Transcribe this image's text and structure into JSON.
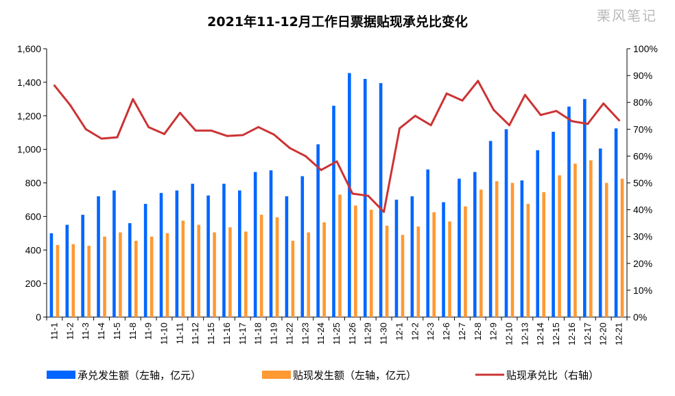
{
  "chart_data": {
    "type": "bar",
    "title": "2021年11-12月工作日票据贴现承兑比变化",
    "watermark": "栗风笔记",
    "categories": [
      "11-1",
      "11-2",
      "11-3",
      "11-4",
      "11-5",
      "11-8",
      "11-9",
      "11-10",
      "11-11",
      "11-12",
      "11-15",
      "11-16",
      "11-17",
      "11-18",
      "11-19",
      "11-22",
      "11-23",
      "11-24",
      "11-25",
      "11-26",
      "11-29",
      "11-30",
      "12-1",
      "12-2",
      "12-3",
      "12-6",
      "12-7",
      "12-8",
      "12-9",
      "12-10",
      "12-13",
      "12-14",
      "12-15",
      "12-16",
      "12-17",
      "12-20",
      "12-21"
    ],
    "series": [
      {
        "name": "承兑发生额（左轴，亿元）",
        "type": "bar",
        "axis": "left",
        "color": "#0066ff",
        "values": [
          500,
          550,
          610,
          720,
          755,
          560,
          675,
          740,
          755,
          795,
          725,
          795,
          755,
          865,
          875,
          720,
          840,
          1030,
          1260,
          1455,
          1420,
          1395,
          700,
          720,
          880,
          685,
          825,
          865,
          1050,
          1120,
          815,
          995,
          1105,
          1255,
          1300,
          1005,
          1125
        ]
      },
      {
        "name": "贴现发生额（左轴，亿元）",
        "type": "bar",
        "axis": "left",
        "color": "#ff9933",
        "values": [
          430,
          435,
          425,
          480,
          505,
          455,
          480,
          500,
          575,
          550,
          505,
          535,
          510,
          610,
          595,
          455,
          505,
          565,
          730,
          665,
          640,
          545,
          490,
          540,
          625,
          570,
          660,
          760,
          810,
          800,
          675,
          745,
          845,
          915,
          935,
          800,
          825
        ]
      },
      {
        "name": "贴现承兑比（右轴）",
        "type": "line",
        "axis": "right",
        "color": "#cc3333",
        "values": [
          86.3,
          79.0,
          70.0,
          66.5,
          67.0,
          81.2,
          70.8,
          68.2,
          76.1,
          69.5,
          69.5,
          67.5,
          67.8,
          70.8,
          68.0,
          63.0,
          60.0,
          54.8,
          58.0,
          46.0,
          45.2,
          39.2,
          70.3,
          75.0,
          71.5,
          83.3,
          80.7,
          88.0,
          77.2,
          71.5,
          82.8,
          75.3,
          76.8,
          73.0,
          72.0,
          79.6,
          73.3
        ]
      }
    ],
    "left_axis": {
      "min": 0,
      "max": 1600,
      "step": 200,
      "tick_labels": [
        "0",
        "200",
        "400",
        "600",
        "800",
        "1,000",
        "1,200",
        "1,400",
        "1,600"
      ]
    },
    "right_axis": {
      "min": 0,
      "max": 100,
      "step": 10,
      "tick_labels": [
        "0%",
        "10%",
        "20%",
        "30%",
        "40%",
        "50%",
        "60%",
        "70%",
        "80%",
        "90%",
        "100%"
      ]
    },
    "grid": false,
    "legend_position": "bottom"
  }
}
